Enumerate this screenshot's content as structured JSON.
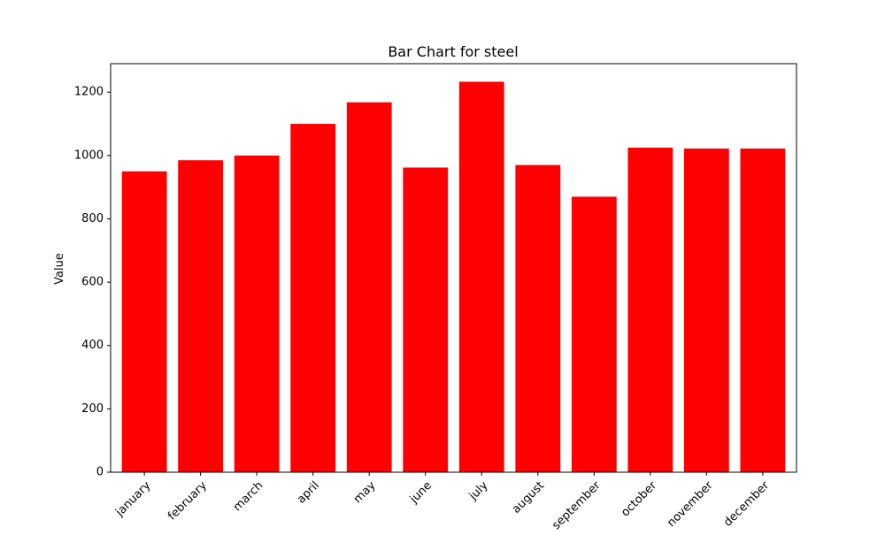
{
  "chart_data": {
    "type": "bar",
    "title": "Bar Chart for steel",
    "xlabel": "",
    "ylabel": "Value",
    "categories": [
      "january",
      "february",
      "march",
      "april",
      "may",
      "june",
      "july",
      "august",
      "september",
      "october",
      "november",
      "december"
    ],
    "values": [
      950,
      985,
      1000,
      1100,
      1168,
      962,
      1233,
      970,
      870,
      1025,
      1022,
      1022
    ],
    "ylim": [
      0,
      1290
    ],
    "yticks": [
      0,
      200,
      400,
      600,
      800,
      1000,
      1200
    ],
    "bar_color": "#ff0000",
    "grid": false,
    "legend": "none"
  }
}
